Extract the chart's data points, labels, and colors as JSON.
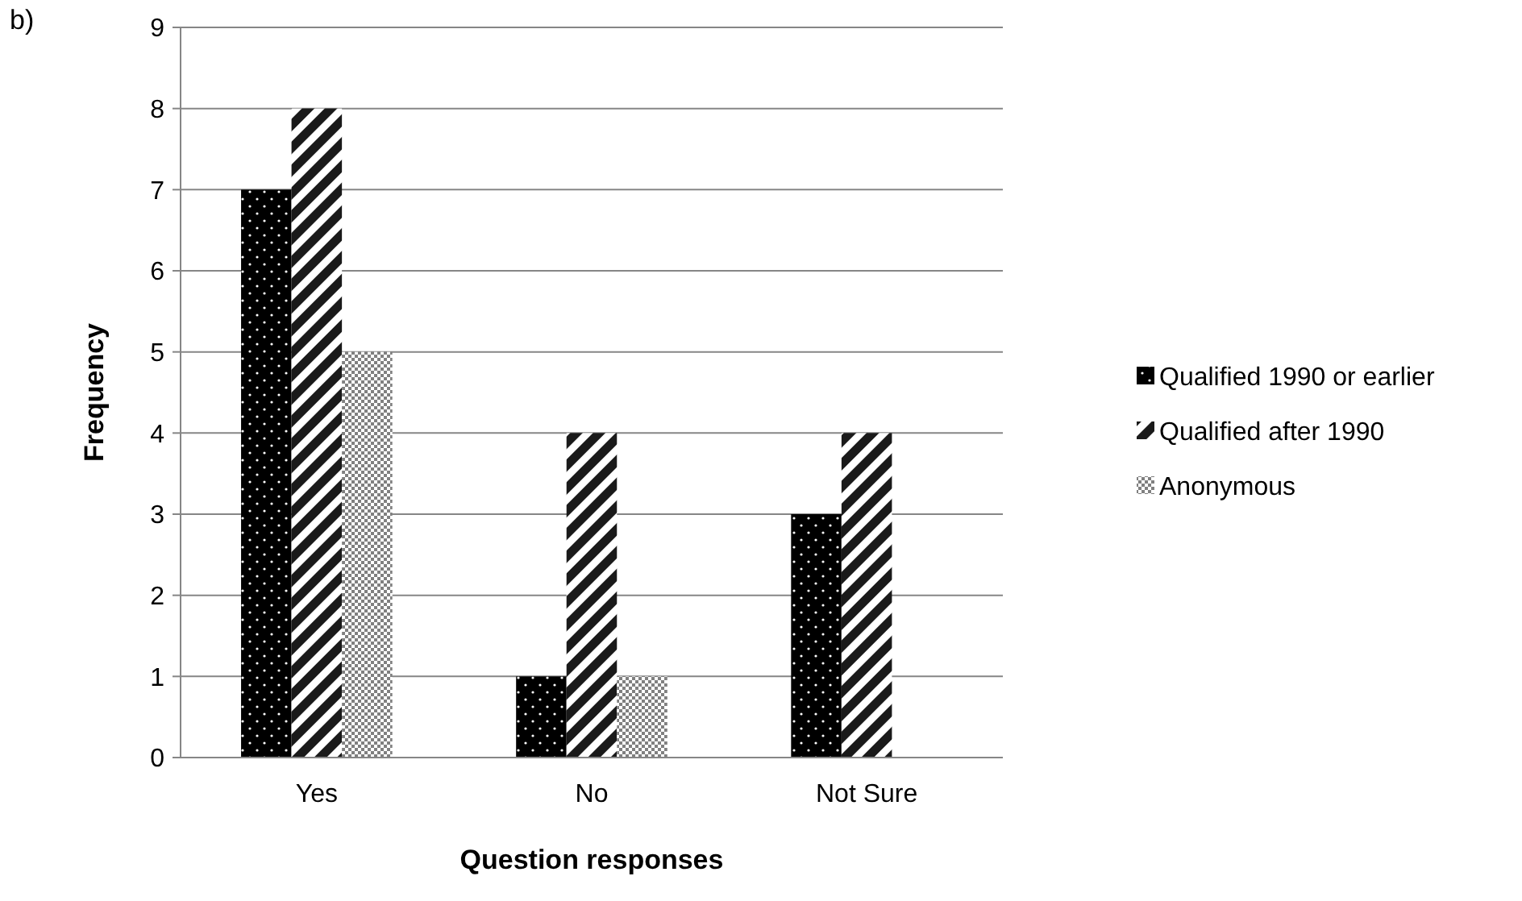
{
  "chart_data": {
    "type": "bar",
    "xlabel": "Question responses",
    "ylabel": "Frequency",
    "annotations": [
      "b)"
    ],
    "categories": [
      "Yes",
      "No",
      "Not Sure"
    ],
    "series": [
      {
        "name": "Qualified 1990 or earlier",
        "color": "#000000",
        "values": [
          7,
          1,
          3
        ]
      },
      {
        "name": "Qualified after 1990",
        "color": "#1a1a1a",
        "values": [
          8,
          4,
          4
        ]
      },
      {
        "name": "Anonymous",
        "color": "#808080",
        "values": [
          5,
          1,
          0
        ]
      }
    ],
    "ylim": [
      0,
      9
    ],
    "yticks": [
      0,
      1,
      2,
      3,
      4,
      5,
      6,
      7,
      8,
      9
    ],
    "grid": "y",
    "legend": "right"
  }
}
